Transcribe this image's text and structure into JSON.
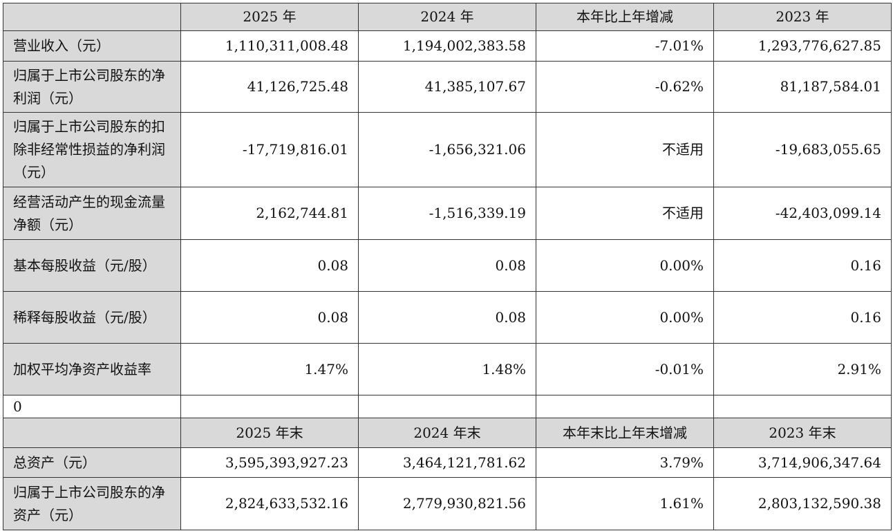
{
  "header": [
    "",
    "2025 年",
    "2024 年",
    "本年比上年增减",
    "2023 年"
  ],
  "rows": [
    {
      "label": "营业收入（元）",
      "values": [
        "1,110,311,008.48",
        "1,194,002,383.58",
        "-7.01%",
        "1,293,776,627.85"
      ]
    },
    {
      "label": "归属于上市公司股东的净利润（元）",
      "values": [
        "41,126,725.48",
        "41,385,107.67",
        "-0.62%",
        "81,187,584.01"
      ]
    },
    {
      "label": "归属于上市公司股东的扣除非经常性损益的净利润（元）",
      "values": [
        "-17,719,816.01",
        "-1,656,321.06",
        "不适用",
        "-19,683,055.65"
      ]
    },
    {
      "label": "经营活动产生的现金流量净额（元）",
      "values": [
        "2,162,744.81",
        "-1,516,339.19",
        "不适用",
        "-42,403,099.14"
      ]
    },
    {
      "label": "基本每股收益（元/股）",
      "values": [
        "0.08",
        "0.08",
        "0.00%",
        "0.16"
      ]
    },
    {
      "label": "稀释每股收益（元/股）",
      "values": [
        "0.08",
        "0.08",
        "0.00%",
        "0.16"
      ]
    },
    {
      "label": "加权平均净资产收益率",
      "values": [
        "1.47%",
        "1.48%",
        "-0.01%",
        "2.91%"
      ]
    }
  ],
  "blank_row": {
    "label": "0"
  },
  "header2": [
    "",
    "2025 年末",
    "2024 年末",
    "本年末比上年末增减",
    "2023 年末"
  ],
  "rows2": [
    {
      "label": "总资产（元）",
      "values": [
        "3,595,393,927.23",
        "3,464,121,781.62",
        "3.79%",
        "3,714,906,347.64"
      ]
    },
    {
      "label": "归属于上市公司股东的净资产（元）",
      "values": [
        "2,824,633,532.16",
        "2,779,930,821.56",
        "1.61%",
        "2,803,132,590.38"
      ]
    }
  ]
}
